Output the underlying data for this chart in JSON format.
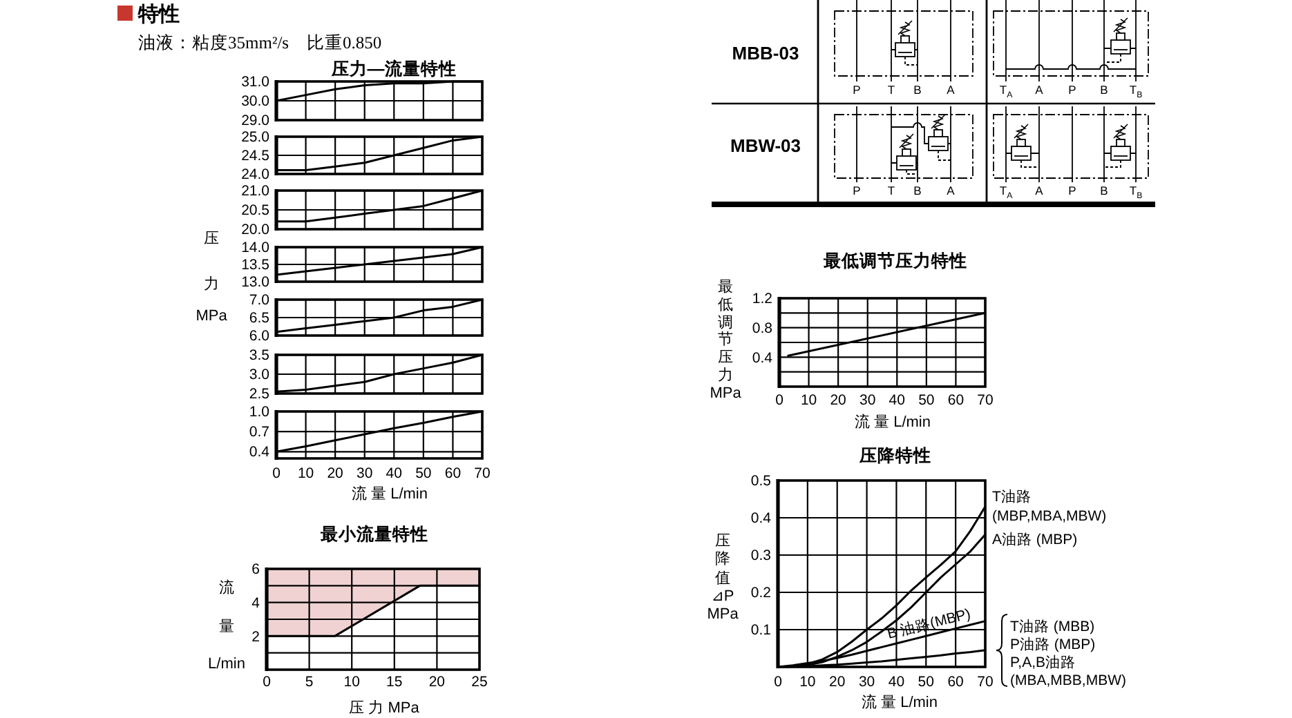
{
  "chart_data": [
    {
      "type": "other",
      "title": "特性",
      "subtitle": "油液：粘度35mm²/s　比重0.850"
    },
    {
      "type": "line",
      "title": "压力—流量特性",
      "x": [
        0,
        10,
        20,
        30,
        40,
        50,
        60,
        70
      ],
      "xlim": [
        0,
        70
      ],
      "xticks": [
        0,
        10,
        20,
        30,
        40,
        50,
        60,
        70
      ],
      "ylim": [
        29,
        31
      ],
      "yticks": [
        {
          "value": 29,
          "label": "29.0"
        },
        {
          "value": 30,
          "label": "30.0"
        },
        {
          "value": 31,
          "label": "31.0"
        }
      ],
      "grid": true,
      "tick_labels": "y",
      "series": [
        {
          "color": "#000000",
          "values": [
            30.0,
            30.3,
            30.6,
            30.8,
            30.9,
            30.9,
            31.0,
            31.0
          ]
        }
      ]
    },
    {
      "type": "line",
      "x": [
        0,
        10,
        20,
        30,
        40,
        50,
        60,
        70
      ],
      "xlim": [
        0,
        70
      ],
      "xticks": [
        0,
        10,
        20,
        30,
        40,
        50,
        60,
        70
      ],
      "ylim": [
        24,
        25
      ],
      "yticks": [
        {
          "value": 24,
          "label": "24.0"
        },
        24.5,
        {
          "value": 25,
          "label": "25.0"
        }
      ],
      "grid": true,
      "tick_labels": "y",
      "series": [
        {
          "color": "#000000",
          "values": [
            24.1,
            24.1,
            24.2,
            24.3,
            24.5,
            24.7,
            24.9,
            25.0
          ]
        }
      ]
    },
    {
      "type": "line",
      "x": [
        0,
        10,
        20,
        30,
        40,
        50,
        60,
        70
      ],
      "xlim": [
        0,
        70
      ],
      "xticks": [
        0,
        10,
        20,
        30,
        40,
        50,
        60,
        70
      ],
      "ylim": [
        20,
        21
      ],
      "yticks": [
        {
          "value": 20,
          "label": "20.0"
        },
        20.5,
        {
          "value": 21,
          "label": "21.0"
        }
      ],
      "grid": true,
      "tick_labels": "y",
      "series": [
        {
          "color": "#000000",
          "values": [
            20.2,
            20.2,
            20.3,
            20.4,
            20.5,
            20.6,
            20.8,
            21.0
          ]
        }
      ]
    },
    {
      "type": "line",
      "ylabel": "压力\nMPa",
      "x": [
        0,
        10,
        20,
        30,
        40,
        50,
        60,
        70
      ],
      "xlim": [
        0,
        70
      ],
      "xticks": [
        0,
        10,
        20,
        30,
        40,
        50,
        60,
        70
      ],
      "ylim": [
        13,
        14
      ],
      "yticks": [
        {
          "value": 13,
          "label": "13.0"
        },
        13.5,
        {
          "value": 14,
          "label": "14.0"
        }
      ],
      "grid": true,
      "tick_labels": "y",
      "series": [
        {
          "color": "#000000",
          "values": [
            13.2,
            13.3,
            13.4,
            13.5,
            13.6,
            13.7,
            13.8,
            14.0
          ]
        }
      ]
    },
    {
      "type": "line",
      "x": [
        0,
        10,
        20,
        30,
        40,
        50,
        60,
        70
      ],
      "xlim": [
        0,
        70
      ],
      "xticks": [
        0,
        10,
        20,
        30,
        40,
        50,
        60,
        70
      ],
      "ylim": [
        6,
        7
      ],
      "yticks": [
        {
          "value": 6,
          "label": "6.0"
        },
        6.5,
        {
          "value": 7,
          "label": "7.0"
        }
      ],
      "grid": true,
      "tick_labels": "y",
      "series": [
        {
          "color": "#000000",
          "values": [
            6.1,
            6.2,
            6.3,
            6.4,
            6.5,
            6.7,
            6.8,
            7.0
          ]
        }
      ]
    },
    {
      "type": "line",
      "x": [
        0,
        10,
        20,
        30,
        40,
        50,
        60,
        70
      ],
      "xlim": [
        0,
        70
      ],
      "xticks": [
        0,
        10,
        20,
        30,
        40,
        50,
        60,
        70
      ],
      "ylim": [
        2.5,
        3.5
      ],
      "yticks": [
        2.5,
        {
          "value": 3,
          "label": "3.0"
        },
        3.5
      ],
      "grid": true,
      "tick_labels": "y",
      "series": [
        {
          "color": "#000000",
          "values": [
            2.55,
            2.6,
            2.7,
            2.8,
            3.0,
            3.15,
            3.3,
            3.5
          ]
        }
      ]
    },
    {
      "type": "line",
      "xlabel": "流 量 L/min",
      "x": [
        0,
        10,
        20,
        30,
        40,
        50,
        60,
        70
      ],
      "xlim": [
        0,
        70
      ],
      "xticks": [
        0,
        10,
        20,
        30,
        40,
        50,
        60,
        70
      ],
      "ylim": [
        0.3,
        1.0
      ],
      "yticks": [
        0.4,
        0.7,
        {
          "value": 1,
          "label": "1.0"
        }
      ],
      "grid": true,
      "series": [
        {
          "color": "#000000",
          "values": [
            0.4,
            0.48,
            0.57,
            0.66,
            0.75,
            0.83,
            0.92,
            1.0
          ]
        }
      ]
    },
    {
      "type": "line",
      "title": "最小流量特性",
      "xlabel": "压 力 MPa",
      "ylabel": "流量\nL/min",
      "x": [
        0,
        8,
        18,
        25
      ],
      "xlim": [
        0,
        25
      ],
      "xticks": [
        0,
        5,
        10,
        15,
        20,
        25
      ],
      "ylim": [
        0,
        6
      ],
      "yticks": [
        {
          "value": 1,
          "label": null
        },
        2,
        {
          "value": 3,
          "label": null
        },
        4,
        {
          "value": 5,
          "label": null
        },
        6
      ],
      "grid": true,
      "series": [
        {
          "type": "line",
          "color": "#000000",
          "values": [
            2,
            2,
            5,
            5
          ],
          "lower": [
            2,
            2,
            5,
            5
          ],
          "upper": [
            6,
            6,
            6,
            6
          ]
        }
      ]
    },
    {
      "type": "other",
      "y_categories": [
        "MBB-03",
        "MBW-03"
      ],
      "categories": [
        "P",
        "T",
        "B",
        "A",
        "T$_{A}$",
        "A",
        "P",
        "B",
        "T$_{B}$"
      ]
    },
    {
      "type": "line",
      "title": "最低调节压力特性",
      "xlabel": "流 量 L/min",
      "ylabel": "最低调节压力\nMPa",
      "x": [
        3,
        70
      ],
      "xlim": [
        0,
        70
      ],
      "xticks": [
        0,
        10,
        20,
        30,
        40,
        50,
        60,
        70
      ],
      "ylim": [
        0,
        1.2
      ],
      "yticks": [
        {
          "value": 0.2,
          "label": null
        },
        0.4,
        {
          "value": 0.6,
          "label": null
        },
        0.8,
        {
          "value": 1,
          "label": null
        },
        1.2
      ],
      "grid": true,
      "series": [
        {
          "color": "#000000",
          "values": [
            0.42,
            1.0
          ]
        }
      ]
    },
    {
      "type": "line",
      "title": "压降特性",
      "xlabel": "流 量 L/min",
      "ylabel": "压降值⊿P\nMPa",
      "x": [
        0,
        5,
        10,
        15,
        20,
        25,
        30,
        35,
        40,
        45,
        50,
        55,
        60,
        65,
        70
      ],
      "xlim": [
        0,
        70
      ],
      "xticks": [
        0,
        10,
        20,
        30,
        40,
        50,
        60,
        70
      ],
      "ylim": [
        0,
        0.5
      ],
      "yticks": [
        0.1,
        0.2,
        0.3,
        0.4,
        0.5
      ],
      "grid": true,
      "series": [
        {
          "name": "T油路\n(MBP,MBA,MBW)",
          "color": "#000000",
          "values": [
            0,
            0.002,
            0.008,
            0.02,
            0.04,
            0.068,
            0.1,
            0.13,
            0.165,
            0.205,
            0.24,
            0.274,
            0.31,
            0.365,
            0.43
          ]
        },
        {
          "name": "A油路 (MBP)",
          "color": "#000000",
          "values": [
            0,
            0.001,
            0.005,
            0.013,
            0.027,
            0.045,
            0.067,
            0.095,
            0.125,
            0.16,
            0.2,
            0.24,
            0.275,
            0.31,
            0.355
          ]
        },
        {
          "name": "B 油路(MBP)",
          "color": "#000000",
          "values": [
            0,
            0.004,
            0.01,
            0.016,
            0.024,
            0.033,
            0.043,
            0.053,
            0.063,
            0.073,
            0.083,
            0.093,
            0.103,
            0.113,
            0.123
          ]
        },
        {
          "name": "T油路 (MBB)\nP油路 (MBP)\nP,A,B油路\n(MBA,MBB,MBW)",
          "color": "#000000",
          "values": [
            0,
            0.001,
            0.002,
            0.004,
            0.006,
            0.009,
            0.012,
            0.015,
            0.019,
            0.023,
            0.027,
            0.031,
            0.036,
            0.04,
            0.045
          ]
        }
      ]
    }
  ]
}
